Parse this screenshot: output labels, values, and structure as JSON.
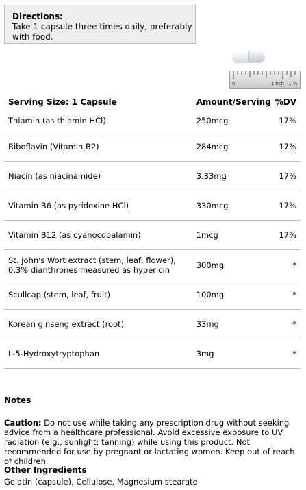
{
  "directions": {
    "title": "Directions:",
    "text": "Take 1 capsule three times daily, preferably with food."
  },
  "ruler": {
    "label_start": "0",
    "label_inch": "1inch",
    "label_end": "1 ½"
  },
  "facts": {
    "headers": {
      "serving_size": "Serving Size: 1 Capsule",
      "amount": "Amount/Serving",
      "dv": "%DV"
    },
    "rows": [
      {
        "name": "Thiamin (as thiamin HCl)",
        "amount": "250mcg",
        "dv": "17%"
      },
      {
        "name": "Riboflavin (Vitamin B2)",
        "amount": "284mcg",
        "dv": "17%"
      },
      {
        "name": "Niacin (as niacinamide)",
        "amount": "3.33mg",
        "dv": "17%"
      },
      {
        "name": "Vitamin B6 (as pyridoxine HCl)",
        "amount": "330mcg",
        "dv": "17%"
      },
      {
        "name": "Vitamin B12 (as cyanocobalamin)",
        "amount": "1mcg",
        "dv": "17%"
      },
      {
        "name": "St. John's Wort extract (stem, leaf, flower), 0.3% dianthrones measured as hypericin",
        "amount": "300mg",
        "dv": "*"
      },
      {
        "name": "Scullcap (stem, leaf, fruit)",
        "amount": "100mg",
        "dv": "*"
      },
      {
        "name": "Korean ginseng extract (root)",
        "amount": "33mg",
        "dv": "*"
      },
      {
        "name": "L-5-Hydroxytryptophan",
        "amount": "3mg",
        "dv": "*"
      }
    ]
  },
  "notes": {
    "title": "Notes",
    "caution_label": "Caution:",
    "caution_text": " Do not use while taking any prescription drug without seeking advice from a healthcare professional. Avoid excessive exposure to UV radiation (e.g., sunlight; tanning) while using this product. Not recommended for use by pregnant or lactating women. Keep out of reach of children."
  },
  "other_ingredients": {
    "title": "Other Ingredients",
    "text": "Gelatin (capsule), Cellulose, Magnesium stearate"
  }
}
